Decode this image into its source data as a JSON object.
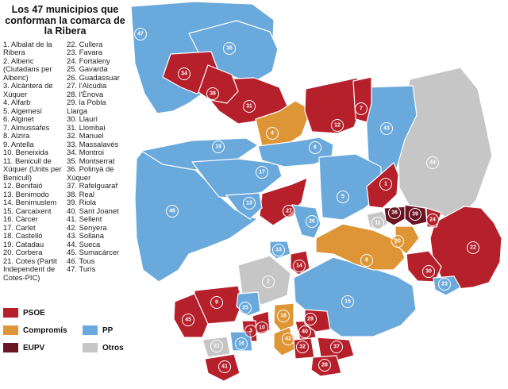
{
  "title": "Los 47 municipios que conforman la comarca de la Ribera",
  "municipalities_col1": [
    "1. Albalat de la Ribera",
    "2. Alberic (Ciutadans per Alberic)",
    "3. Alcàntera de Xúquer",
    "4. Alfarb",
    "5. Algemesí",
    "6. Alginet",
    "7. Almussafes",
    "8. Alzira",
    "9. Antella",
    "10. Beneixida",
    "11. Benicull de Xúquer (Units per Benicull)",
    "12. Benifaió",
    "13. Benimodo",
    "14. Benimuslem",
    "15. Carcaixent",
    "16. Càrcer",
    "17. Carlet",
    "18. Castelló",
    "19. Catadau",
    "20. Corbera",
    "21. Cotes (Partit Independent de Cotes-PIC)"
  ],
  "municipalities_col2": [
    "22. Cullera",
    "23. Favara",
    "24. Fortaleny",
    "25. Gavarda",
    "26. Guadassuar",
    "27. l'Alcúdia",
    "28. l'Ènova",
    "29. la Pobla Llarga",
    "30. Llaurí",
    "31. Llombai",
    "32. Manuel",
    "33. Massalavés",
    "34. Montroi",
    "35. Montserrat",
    "36. Polinyà de Xúquer",
    "37. Rafelguaraf",
    "38. Real",
    "39. Riola",
    "40. Sant Joanet",
    "41. Sellent",
    "42. Senyera",
    "43. Sollana",
    "44. Sueca",
    "45. Sumacàrcer",
    "46. Tous",
    "47. Turís"
  ],
  "legend": [
    {
      "label": "PSOE",
      "color": "#b5202b"
    },
    {
      "label": "Compromís",
      "color": "#dd9535"
    },
    {
      "label": "EUPV",
      "color": "#6b1523"
    },
    {
      "label": "PP",
      "color": "#6aa9dc"
    },
    {
      "label": "Otros",
      "color": "#c6c6c6"
    }
  ],
  "municipalities": [
    {
      "n": "1",
      "party": "PSOE"
    },
    {
      "n": "2",
      "party": "Otros"
    },
    {
      "n": "3",
      "party": "PSOE"
    },
    {
      "n": "4",
      "party": "Compromís"
    },
    {
      "n": "5",
      "party": "PP"
    },
    {
      "n": "6",
      "party": "PP"
    },
    {
      "n": "7",
      "party": "PSOE"
    },
    {
      "n": "8",
      "party": "Compromís"
    },
    {
      "n": "9",
      "party": "PSOE"
    },
    {
      "n": "10",
      "party": "PSOE"
    },
    {
      "n": "11",
      "party": "Otros"
    },
    {
      "n": "12",
      "party": "PSOE"
    },
    {
      "n": "13",
      "party": "PP"
    },
    {
      "n": "14",
      "party": "PSOE"
    },
    {
      "n": "15",
      "party": "PP"
    },
    {
      "n": "16",
      "party": "PP"
    },
    {
      "n": "17",
      "party": "PP"
    },
    {
      "n": "18",
      "party": "Compromís"
    },
    {
      "n": "19",
      "party": "PP"
    },
    {
      "n": "20",
      "party": "Compromís"
    },
    {
      "n": "21",
      "party": "Otros"
    },
    {
      "n": "22",
      "party": "PSOE"
    },
    {
      "n": "23",
      "party": "PP"
    },
    {
      "n": "24",
      "party": "PSOE"
    },
    {
      "n": "25",
      "party": "PP"
    },
    {
      "n": "26",
      "party": "PP"
    },
    {
      "n": "27",
      "party": "PSOE"
    },
    {
      "n": "28",
      "party": "PSOE"
    },
    {
      "n": "29",
      "party": "PSOE"
    },
    {
      "n": "30",
      "party": "PSOE"
    },
    {
      "n": "31",
      "party": "PSOE"
    },
    {
      "n": "32",
      "party": "PSOE"
    },
    {
      "n": "33",
      "party": "PP"
    },
    {
      "n": "34",
      "party": "PSOE"
    },
    {
      "n": "35",
      "party": "PP"
    },
    {
      "n": "36",
      "party": "EUPV"
    },
    {
      "n": "37",
      "party": "PSOE"
    },
    {
      "n": "38",
      "party": "PSOE"
    },
    {
      "n": "39",
      "party": "EUPV"
    },
    {
      "n": "40",
      "party": "PSOE"
    },
    {
      "n": "41",
      "party": "PSOE"
    },
    {
      "n": "42",
      "party": "Compromís"
    },
    {
      "n": "43",
      "party": "PP"
    },
    {
      "n": "44",
      "party": "Otros"
    },
    {
      "n": "45",
      "party": "PSOE"
    },
    {
      "n": "46",
      "party": "PP"
    },
    {
      "n": "47",
      "party": "PP"
    }
  ]
}
